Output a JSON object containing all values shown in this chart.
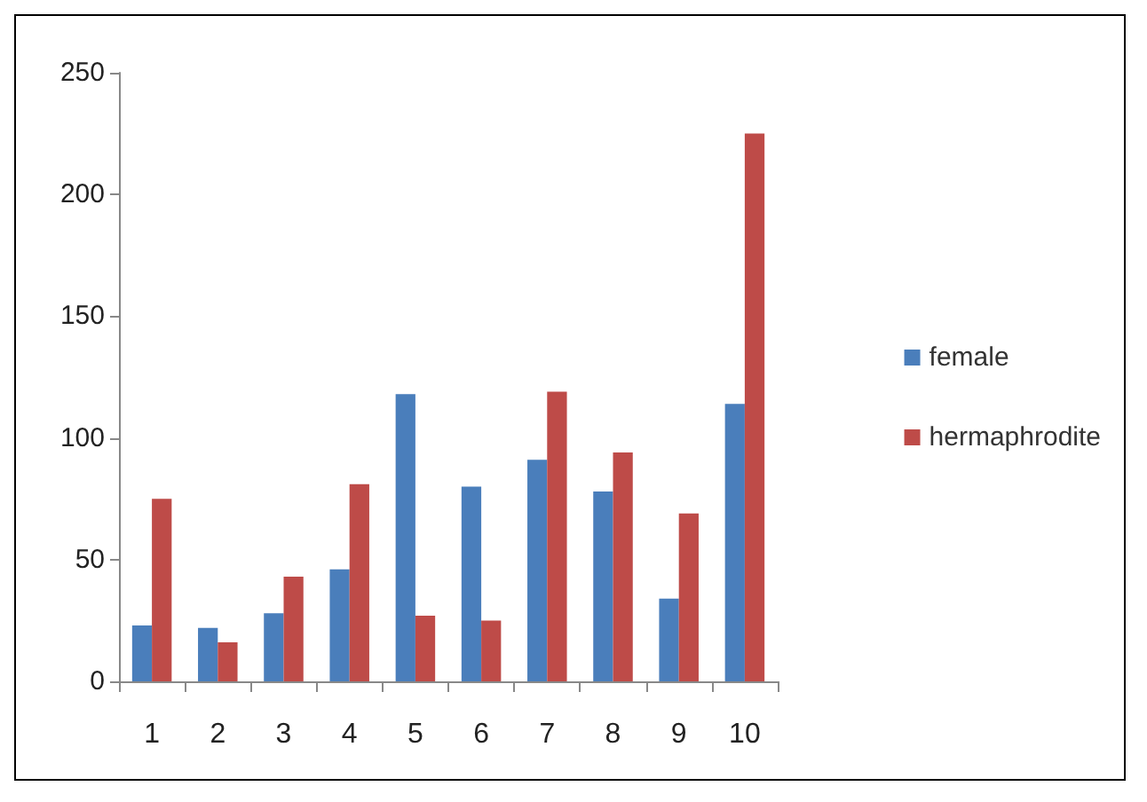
{
  "chart_data": {
    "type": "bar",
    "categories": [
      "1",
      "2",
      "3",
      "4",
      "5",
      "6",
      "7",
      "8",
      "9",
      "10"
    ],
    "series": [
      {
        "name": "female",
        "color": "#4a7ebb",
        "values": [
          23,
          22,
          28,
          46,
          118,
          80,
          91,
          78,
          34,
          114
        ]
      },
      {
        "name": "hermaphrodite",
        "color": "#be4b48",
        "values": [
          75,
          16,
          43,
          81,
          27,
          25,
          119,
          94,
          69,
          225
        ]
      }
    ],
    "ylim": [
      0,
      250
    ],
    "yticks": [
      0,
      50,
      100,
      150,
      200,
      250
    ],
    "grid": false,
    "legend": "right"
  }
}
